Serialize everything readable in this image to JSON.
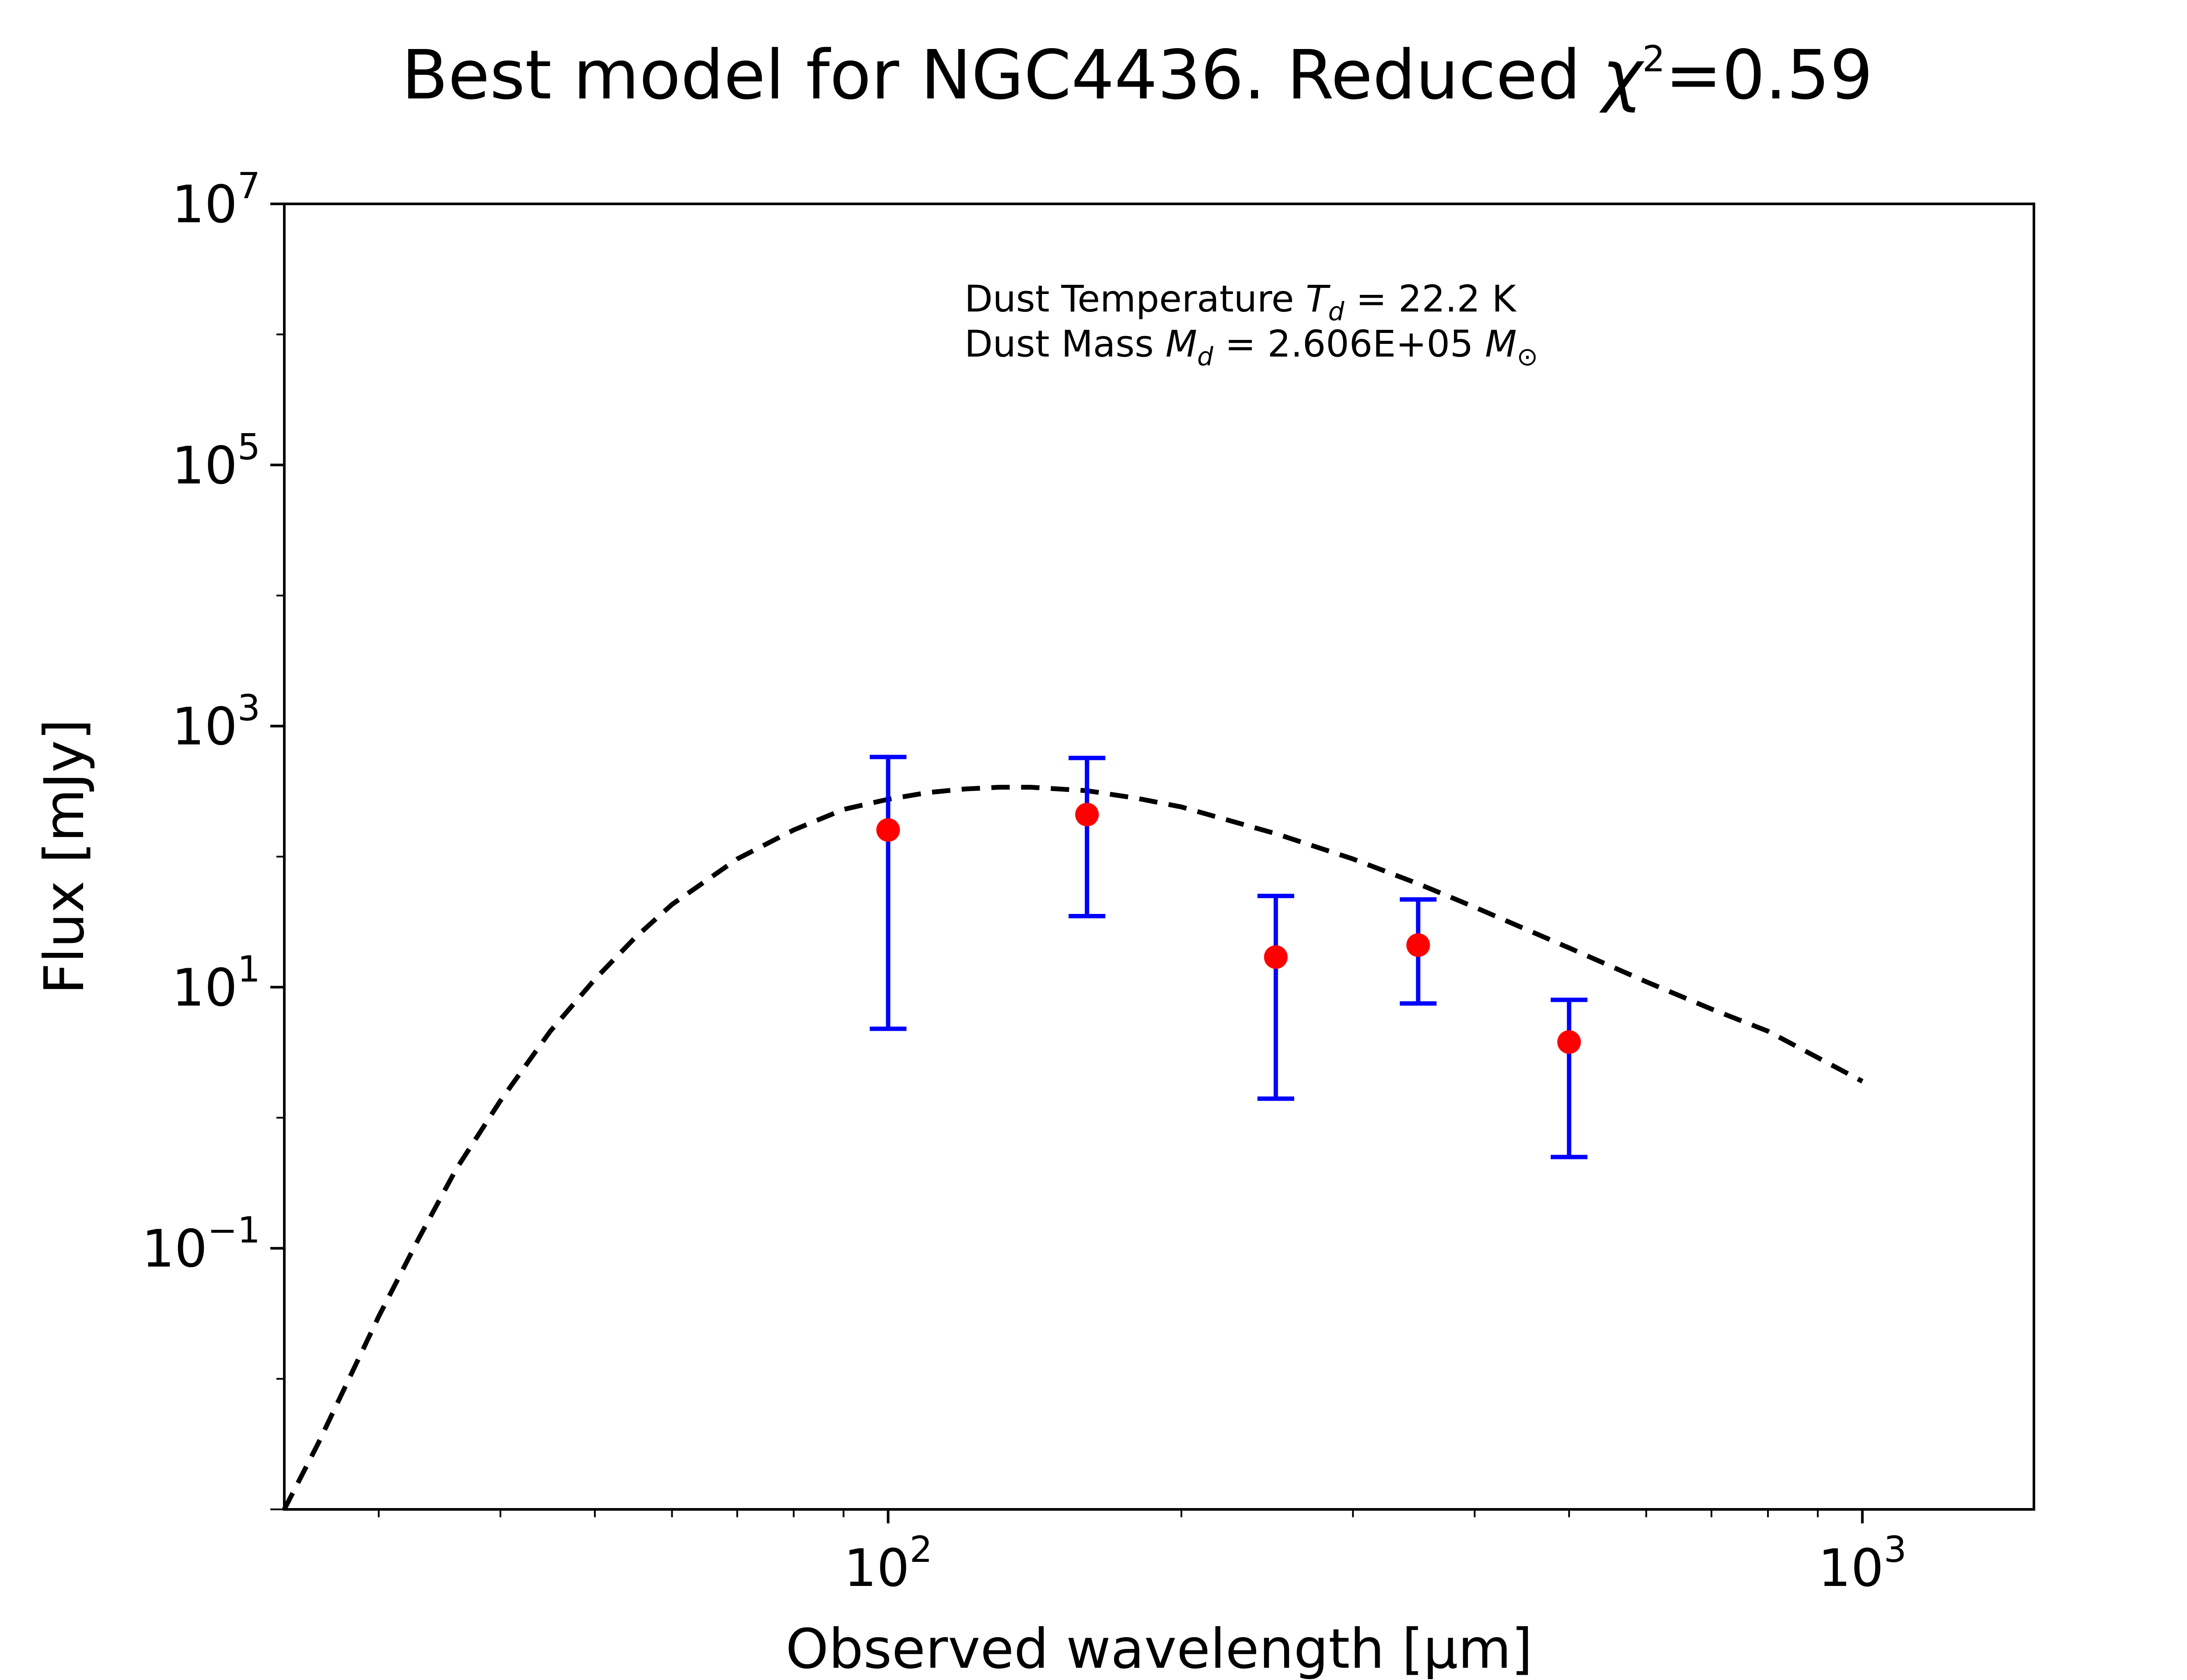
{
  "chart_data": {
    "type": "scatter",
    "title": {
      "prefix": "Best model for NGC4436. Reduced ",
      "chi_symbol": "χ",
      "chi_exponent": "2",
      "suffix": "=0.59"
    },
    "xlabel": "Observed wavelength [μm]",
    "ylabel": "Flux [mJy]",
    "xscale": "log",
    "yscale": "log",
    "xlim": [
      24,
      1500
    ],
    "ylim": [
      0.001,
      10000000
    ],
    "x_ticks": [
      {
        "value": 100,
        "base": "10",
        "exp": "2"
      },
      {
        "value": 1000,
        "base": "10",
        "exp": "3"
      }
    ],
    "y_ticks": [
      {
        "value": 0.1,
        "base": "10",
        "exp": "−1"
      },
      {
        "value": 10,
        "base": "10",
        "exp": "1"
      },
      {
        "value": 1000,
        "base": "10",
        "exp": "3"
      },
      {
        "value": 100000,
        "base": "10",
        "exp": "5"
      },
      {
        "value": 10000000,
        "base": "10",
        "exp": "7"
      }
    ],
    "grid": false,
    "legend": false,
    "series": [
      {
        "kind": "errorbar",
        "color": "#ff0000",
        "errorbar_color": "#0000ff",
        "points": [
          {
            "x": 100,
            "y": 160,
            "y_low": 4.8,
            "y_high": 580
          },
          {
            "x": 160,
            "y": 210,
            "y_low": 35,
            "y_high": 570
          },
          {
            "x": 250,
            "y": 17,
            "y_low": 1.4,
            "y_high": 50
          },
          {
            "x": 350,
            "y": 21,
            "y_low": 7.5,
            "y_high": 47
          },
          {
            "x": 500,
            "y": 3.8,
            "y_low": 0.5,
            "y_high": 8
          }
        ]
      },
      {
        "kind": "line",
        "style": "dashed",
        "color": "#000000",
        "x": [
          24,
          26,
          28,
          30,
          33,
          36,
          40,
          45,
          50,
          55,
          60,
          70,
          80,
          90,
          100,
          110,
          120,
          130,
          140,
          160,
          180,
          200,
          250,
          300,
          350,
          400,
          500,
          600,
          700,
          800,
          1000
        ],
        "y": [
          0.001,
          0.0032,
          0.0102,
          0.03,
          0.12,
          0.4,
          1.35,
          4.6,
          11.5,
          24,
          43,
          96,
          160,
          230,
          275,
          310,
          330,
          340,
          340,
          320,
          280,
          240,
          150,
          96,
          62,
          41,
          20,
          11,
          6.8,
          4.6,
          1.9
        ]
      }
    ],
    "annotation": {
      "line1_prefix": "Dust Temperature ",
      "line1_symbol": "T",
      "line1_sub": "d",
      "line1_suffix": " = 22.2 K",
      "line2_prefix": "Dust Mass ",
      "line2_symbol": "M",
      "line2_sub": "d",
      "line2_mid": " = 2.606E+05 ",
      "line2_unit": "M",
      "line2_unit_sub": "⊙",
      "position": "top-center"
    }
  }
}
